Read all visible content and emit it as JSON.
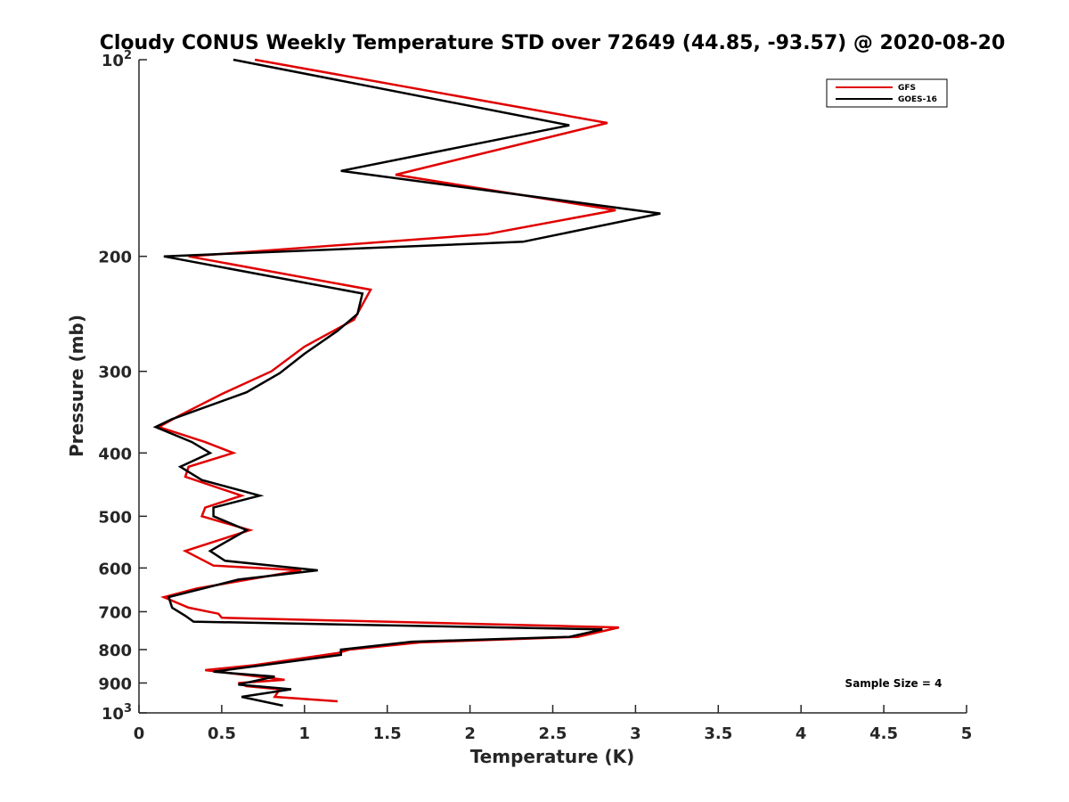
{
  "chart_data": {
    "type": "line",
    "title": "Cloudy CONUS Weekly Temperature STD over 72649 (44.85, -93.57) @ 2020-08-20",
    "xlabel": "Temperature (K)",
    "ylabel": "Pressure (mb)",
    "xlim": [
      0,
      5
    ],
    "ylim": [
      100,
      1000
    ],
    "y_scale": "log",
    "y_reversed": true,
    "x_ticks": [
      "0",
      "0.5",
      "1",
      "1.5",
      "2",
      "2.5",
      "3",
      "3.5",
      "4",
      "4.5",
      "5"
    ],
    "y_ticks": [
      {
        "value": 100,
        "base": "10",
        "exp": "2"
      },
      {
        "value": 200,
        "label": "200"
      },
      {
        "value": 300,
        "label": "300"
      },
      {
        "value": 400,
        "label": "400"
      },
      {
        "value": 500,
        "label": "500"
      },
      {
        "value": 600,
        "label": "600"
      },
      {
        "value": 700,
        "label": "700"
      },
      {
        "value": 800,
        "label": "800"
      },
      {
        "value": 900,
        "label": "900"
      },
      {
        "value": 1000,
        "base": "10",
        "exp": "3"
      }
    ],
    "grid": false,
    "legend_position": "top-right",
    "annotation": "Sample Size = 4",
    "series": [
      {
        "name": "GFS",
        "color": "#e00000",
        "points": [
          [
            0.7,
            100
          ],
          [
            2.83,
            125
          ],
          [
            1.55,
            150
          ],
          [
            2.88,
            170
          ],
          [
            2.1,
            185
          ],
          [
            0.3,
            200
          ],
          [
            1.4,
            225
          ],
          [
            1.3,
            250
          ],
          [
            1.0,
            275
          ],
          [
            0.8,
            300
          ],
          [
            0.5,
            325
          ],
          [
            0.25,
            350
          ],
          [
            0.12,
            365
          ],
          [
            0.4,
            385
          ],
          [
            0.57,
            400
          ],
          [
            0.3,
            420
          ],
          [
            0.28,
            435
          ],
          [
            0.62,
            465
          ],
          [
            0.4,
            485
          ],
          [
            0.38,
            500
          ],
          [
            0.67,
            525
          ],
          [
            0.28,
            565
          ],
          [
            0.45,
            595
          ],
          [
            0.98,
            605
          ],
          [
            0.35,
            645
          ],
          [
            0.15,
            665
          ],
          [
            0.3,
            690
          ],
          [
            0.48,
            705
          ],
          [
            0.5,
            715
          ],
          [
            2.9,
            740
          ],
          [
            2.65,
            765
          ],
          [
            1.7,
            780
          ],
          [
            1.27,
            800
          ],
          [
            1.2,
            810
          ],
          [
            0.7,
            845
          ],
          [
            0.4,
            860
          ],
          [
            0.88,
            890
          ],
          [
            0.6,
            900
          ],
          [
            0.65,
            910
          ],
          [
            0.85,
            920
          ],
          [
            0.82,
            945
          ],
          [
            1.2,
            960
          ]
        ]
      },
      {
        "name": "GOES-16",
        "color": "#000000",
        "points": [
          [
            0.57,
            100
          ],
          [
            2.6,
            126
          ],
          [
            1.22,
            148
          ],
          [
            3.15,
            172
          ],
          [
            2.32,
            190
          ],
          [
            0.15,
            200
          ],
          [
            1.35,
            228
          ],
          [
            1.32,
            245
          ],
          [
            1.2,
            260
          ],
          [
            1.0,
            282
          ],
          [
            0.85,
            302
          ],
          [
            0.65,
            323
          ],
          [
            0.2,
            355
          ],
          [
            0.1,
            365
          ],
          [
            0.32,
            385
          ],
          [
            0.43,
            400
          ],
          [
            0.25,
            420
          ],
          [
            0.38,
            440
          ],
          [
            0.73,
            465
          ],
          [
            0.45,
            485
          ],
          [
            0.45,
            500
          ],
          [
            0.65,
            525
          ],
          [
            0.43,
            565
          ],
          [
            0.52,
            585
          ],
          [
            1.08,
            605
          ],
          [
            0.6,
            625
          ],
          [
            0.18,
            665
          ],
          [
            0.2,
            690
          ],
          [
            0.28,
            710
          ],
          [
            0.33,
            725
          ],
          [
            2.8,
            745
          ],
          [
            2.6,
            765
          ],
          [
            1.65,
            778
          ],
          [
            1.22,
            800
          ],
          [
            1.22,
            815
          ],
          [
            0.45,
            865
          ],
          [
            0.82,
            880
          ],
          [
            0.6,
            905
          ],
          [
            0.92,
            920
          ],
          [
            0.62,
            945
          ],
          [
            0.87,
            975
          ]
        ]
      }
    ]
  }
}
